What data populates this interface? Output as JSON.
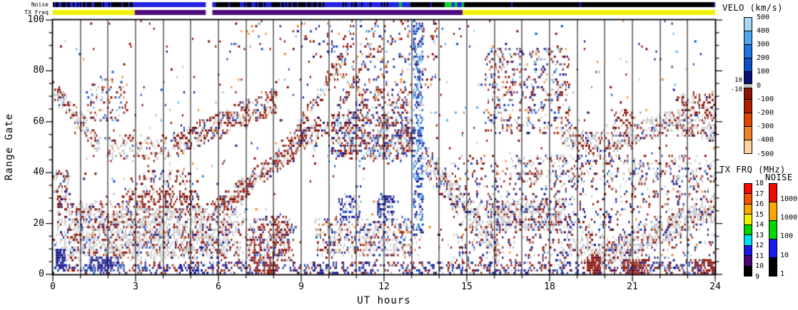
{
  "bars": {
    "noise_label": "Noise",
    "tx_label": "TX Freq",
    "noise_segments": [
      {
        "t0": 0,
        "t1": 2.95,
        "bg": "#000000",
        "fleck": {
          "color": "#2323e6",
          "density": 0.32
        }
      },
      {
        "t0": 2.95,
        "t1": 5.55,
        "bg": "#2323e6"
      },
      {
        "t0": 5.55,
        "t1": 5.78,
        "bg": "#ffffff"
      },
      {
        "t0": 5.78,
        "t1": 5.9,
        "bg": "#2323e6"
      },
      {
        "t0": 5.9,
        "t1": 9.85,
        "bg": "#000000",
        "fleck": {
          "color": "#2323e6",
          "density": 0.32
        }
      },
      {
        "t0": 9.85,
        "t1": 10.5,
        "bg": "#2323e6"
      },
      {
        "t0": 10.5,
        "t1": 12.55,
        "bg": "#2323e6",
        "fleck": {
          "color": "#000000",
          "density": 0.3
        }
      },
      {
        "t0": 12.55,
        "t1": 12.95,
        "bg": "#2323e6",
        "fleck": {
          "color": "#00c832",
          "density": 0.2
        }
      },
      {
        "t0": 12.95,
        "t1": 14.2,
        "bg": "#000000",
        "fleck": {
          "color": "#2323e6",
          "density": 0.1
        }
      },
      {
        "t0": 14.2,
        "t1": 14.45,
        "bg": "#00d824"
      },
      {
        "t0": 14.45,
        "t1": 14.9,
        "bg": "#2323e6",
        "fleck": {
          "color": "#00d824",
          "density": 0.3
        }
      },
      {
        "t0": 14.9,
        "t1": 24,
        "bg": "#000000",
        "fleck": {
          "color": "#2323e6",
          "density": 0.015
        }
      }
    ],
    "tx_segments": [
      {
        "t0": 0,
        "t1": 2.97,
        "bg": "#f0f000"
      },
      {
        "t0": 2.97,
        "t1": 5.55,
        "bg": "#4f0b7e"
      },
      {
        "t0": 5.55,
        "t1": 5.78,
        "bg": "#ffffff"
      },
      {
        "t0": 5.78,
        "t1": 14.85,
        "bg": "#4f0b7e"
      },
      {
        "t0": 14.85,
        "t1": 24,
        "bg": "#f0f000"
      }
    ]
  },
  "axes": {
    "x": {
      "label": "UT hours",
      "min": 0,
      "max": 24,
      "major_tick_values": [
        0,
        3,
        6,
        9,
        12,
        15,
        18,
        21,
        24
      ],
      "major_tick_labels": [
        "0",
        "3",
        "6",
        "9",
        "12",
        "15",
        "18",
        "21",
        "24"
      ],
      "minor_step": 1
    },
    "y": {
      "label": "Range Gate",
      "min": 0,
      "max": 100,
      "major_tick_values": [
        0,
        20,
        40,
        60,
        80,
        100
      ],
      "major_tick_labels": [
        "0",
        "20",
        "40",
        "60",
        "80",
        "100"
      ],
      "minor_step": 5
    }
  },
  "legends": {
    "velocity": {
      "title": "VELO (km/s)",
      "labels": [
        "500",
        "400",
        "300",
        "200",
        "100",
        "0",
        "-100",
        "-200",
        "-300",
        "-400",
        "-500"
      ],
      "colors": [
        "#a9d8f4",
        "#4fa7f0",
        "#2176e4",
        "#0f4fc8",
        "#0a1478",
        "#8e1505",
        "#b02103",
        "#dc4703",
        "#f0832a",
        "#fbd3a5"
      ],
      "gs_labels": [
        "10",
        "-10"
      ],
      "gs_color": "#c6c6c6"
    },
    "tx_freq": {
      "title": "TX FRQ (MHz)",
      "labels": [
        "18",
        "17",
        "16",
        "15",
        "14",
        "13",
        "12",
        "11",
        "10",
        "9"
      ],
      "colors": [
        "#f20c00",
        "#f55400",
        "#f9a800",
        "#f2f200",
        "#00d800",
        "#00e0f0",
        "#1818f0",
        "#4a0878",
        "#000000"
      ]
    },
    "noise": {
      "title": "NOISE",
      "labels": [
        "10000",
        "1000",
        "100",
        "10",
        "1"
      ],
      "colors": [
        "#f20c00",
        "#f9a800",
        "#00d800",
        "#1818f0",
        "#000000"
      ]
    }
  },
  "chart_data": {
    "type": "rti-scatter",
    "description": "SuperDARN radar range-time plot: Doppler velocity vs UT hour and range gate; grey = ground scatter, reds = negative velocity, blues = positive velocity",
    "x": {
      "label": "UT hours",
      "range": [
        0,
        24
      ],
      "hour_gridlines": true
    },
    "y": {
      "label": "Range Gate",
      "range": [
        0,
        100
      ]
    },
    "seed": 1337,
    "cell": {
      "t_step_hours": 0.052,
      "gate_step": 1
    },
    "palette": {
      "gs": "#c8c8c8",
      "dred": "#8c1408",
      "navy": "#16168c",
      "blue": "#1550c8",
      "lblue": "#2d7ce0",
      "cyan": "#58b2f0",
      "orange": "#f0832a",
      "peach": "#fbd3a5"
    },
    "features": [
      {
        "s": "blob",
        "t": [
          0.05,
          7.1
        ],
        "g": [
          5,
          28
        ],
        "d": 0.55,
        "f": 0.25,
        "w": {
          "gs": 62,
          "dred": 24,
          "navy": 8,
          "blue": 4,
          "orange": 2
        }
      },
      {
        "s": "blob",
        "t": [
          0.1,
          0.45
        ],
        "g": [
          2,
          9
        ],
        "d": 0.75,
        "w": {
          "navy": 85,
          "blue": 15
        }
      },
      {
        "s": "blob",
        "t": [
          1.25,
          2.4
        ],
        "g": [
          1,
          6
        ],
        "d": 0.6,
        "w": {
          "navy": 80,
          "blue": 10,
          "gs": 10
        }
      },
      {
        "s": "blob",
        "t": [
          2.4,
          5.4
        ],
        "g": [
          18,
          33
        ],
        "d": 0.5,
        "f": 0.3,
        "w": {
          "dred": 72,
          "gs": 20,
          "navy": 6,
          "blue": 2
        }
      },
      {
        "s": "diag",
        "t": [
          0.0,
          1.7
        ],
        "g0": 72,
        "g1": 50,
        "th": 9,
        "d": 0.5,
        "w": {
          "gs": 55,
          "dred": 33,
          "blue": 6,
          "orange": 3,
          "cyan": 3
        }
      },
      {
        "s": "blob",
        "t": [
          1.7,
          4.5
        ],
        "g": [
          44,
          54
        ],
        "d": 0.28,
        "f": 0.3,
        "w": {
          "gs": 60,
          "dred": 30,
          "blue": 5,
          "orange": 5
        }
      },
      {
        "s": "blob",
        "t": [
          1.2,
          2.7
        ],
        "g": [
          60,
          77
        ],
        "d": 0.16,
        "w": {
          "dred": 40,
          "gs": 25,
          "blue": 12,
          "orange": 10,
          "cyan": 8,
          "navy": 5
        }
      },
      {
        "s": "diag",
        "t": [
          4.3,
          8.1
        ],
        "g0": 50,
        "g1": 68,
        "th": 11,
        "d": 0.5,
        "w": {
          "dred": 55,
          "gs": 30,
          "blue": 6,
          "navy": 5,
          "orange": 4
        }
      },
      {
        "s": "diag",
        "t": [
          5.6,
          9.7
        ],
        "g0": 22,
        "g1": 58,
        "th": 9,
        "d": 0.55,
        "w": {
          "dred": 58,
          "gs": 30,
          "navy": 6,
          "blue": 4,
          "orange": 2
        }
      },
      {
        "s": "diag",
        "t": [
          8.0,
          10.7
        ],
        "g0": 42,
        "g1": 88,
        "th": 7,
        "d": 0.4,
        "w": {
          "dred": 58,
          "gs": 24,
          "blue": 8,
          "orange": 6,
          "cyan": 4
        }
      },
      {
        "s": "diag",
        "t": [
          9.4,
          11.5
        ],
        "g0": 48,
        "g1": 86,
        "th": 6,
        "d": 0.35,
        "w": {
          "dred": 55,
          "gs": 22,
          "navy": 10,
          "blue": 8,
          "orange": 5
        }
      },
      {
        "s": "blob",
        "t": [
          9.9,
          13.35
        ],
        "g": [
          44,
          64
        ],
        "d": 0.5,
        "f": 0.2,
        "w": {
          "dred": 42,
          "gs": 28,
          "navy": 16,
          "blue": 8,
          "cyan": 6
        }
      },
      {
        "s": "blob",
        "t": [
          10.9,
          13.35
        ],
        "g": [
          64,
          72
        ],
        "d": 0.3,
        "w": {
          "dred": 45,
          "navy": 20,
          "gs": 15,
          "blue": 10,
          "orange": 10
        }
      },
      {
        "s": "blob",
        "t": [
          9.9,
          13.9
        ],
        "g": [
          72,
          100
        ],
        "d": 0.12,
        "w": {
          "dred": 35,
          "navy": 22,
          "blue": 14,
          "orange": 12,
          "cyan": 9,
          "gs": 8
        }
      },
      {
        "s": "blob",
        "t": [
          6.3,
          9.9
        ],
        "g": [
          85,
          100
        ],
        "d": 0.05,
        "w": {
          "dred": 40,
          "navy": 20,
          "blue": 15,
          "orange": 15,
          "cyan": 10
        }
      },
      {
        "s": "blob",
        "t": [
          7.0,
          8.7
        ],
        "g": [
          4,
          22
        ],
        "d": 0.5,
        "f": 0.25,
        "w": {
          "dred": 55,
          "gs": 28,
          "navy": 12,
          "blue": 5
        }
      },
      {
        "s": "blob",
        "t": [
          9.4,
          13.35
        ],
        "g": [
          6,
          22
        ],
        "d": 0.42,
        "f": 0.25,
        "w": {
          "gs": 50,
          "dred": 20,
          "navy": 15,
          "blue": 10,
          "orange": 5
        }
      },
      {
        "s": "blob",
        "t": [
          10.3,
          11.15
        ],
        "g": [
          18,
          30
        ],
        "d": 0.3,
        "w": {
          "navy": 55,
          "blue": 25,
          "gs": 15,
          "cyan": 5
        }
      },
      {
        "s": "blob",
        "t": [
          11.7,
          12.35
        ],
        "g": [
          20,
          30
        ],
        "d": 0.55,
        "w": {
          "navy": 70,
          "blue": 20,
          "gs": 10
        }
      },
      {
        "s": "blob",
        "t": [
          13.0,
          13.4
        ],
        "g": [
          15,
          100
        ],
        "d": 0.45,
        "w": {
          "blue": 30,
          "navy": 28,
          "cyan": 16,
          "lblue": 16,
          "gs": 10
        }
      },
      {
        "s": "diag",
        "t": [
          13.35,
          16.2
        ],
        "g0": 46,
        "g1": 8,
        "th": 13,
        "d": 0.5,
        "w": {
          "gs": 52,
          "dred": 20,
          "navy": 16,
          "blue": 8,
          "orange": 4
        }
      },
      {
        "s": "blob",
        "t": [
          15.6,
          18.7
        ],
        "g": [
          55,
          88
        ],
        "d": 0.22,
        "w": {
          "dred": 34,
          "navy": 20,
          "gs": 20,
          "blue": 10,
          "orange": 8,
          "cyan": 8
        }
      },
      {
        "s": "blob",
        "t": [
          16.2,
          18.1
        ],
        "g": [
          58,
          78
        ],
        "d": 0.2,
        "w": {
          "dred": 40,
          "navy": 22,
          "gs": 18,
          "blue": 10,
          "orange": 10
        }
      },
      {
        "s": "wave",
        "t": [
          18.4,
          24.0
        ],
        "gc": 55,
        "amp": -4,
        "per": 5.5,
        "th": 9,
        "d": 0.5,
        "w": {
          "gs": 62,
          "dred": 28,
          "navy": 6,
          "blue": 4
        }
      },
      {
        "s": "blob",
        "t": [
          20.2,
          21.1
        ],
        "g": [
          50,
          64
        ],
        "d": 0.35,
        "w": {
          "dred": 70,
          "gs": 25,
          "navy": 5
        }
      },
      {
        "s": "blob",
        "t": [
          22.6,
          24.0
        ],
        "g": [
          54,
          70
        ],
        "d": 0.35,
        "w": {
          "dred": 60,
          "gs": 28,
          "navy": 6,
          "blue": 6
        }
      },
      {
        "s": "blob",
        "t": [
          15.4,
          18.7
        ],
        "g": [
          16,
          30
        ],
        "d": 0.5,
        "f": 0.25,
        "w": {
          "gs": 52,
          "dred": 26,
          "navy": 16,
          "blue": 6
        }
      },
      {
        "s": "diag",
        "t": [
          19.3,
          24.0
        ],
        "g0": 4,
        "g1": 26,
        "th": 11,
        "d": 0.6,
        "w": {
          "gs": 66,
          "dred": 22,
          "navy": 10,
          "blue": 2
        }
      },
      {
        "s": "blob",
        "t": [
          16.5,
          24.0
        ],
        "g": [
          36,
          46
        ],
        "d": 0.22,
        "w": {
          "gs": 48,
          "dred": 30,
          "navy": 12,
          "blue": 10
        }
      },
      {
        "s": "blob",
        "t": [
          14.4,
          24.0
        ],
        "g": [
          0,
          46
        ],
        "d": 0.13,
        "w": {
          "dred": 38,
          "navy": 28,
          "gs": 20,
          "blue": 10,
          "orange": 4
        }
      },
      {
        "s": "blob",
        "t": [
          18.4,
          19.6
        ],
        "g": [
          6,
          20
        ],
        "d": 0.3,
        "w": {
          "gs": 55,
          "dred": 25,
          "navy": 20
        }
      },
      {
        "s": "blob",
        "t": [
          0,
          24
        ],
        "g": [
          0,
          4
        ],
        "d": 0.32,
        "w": {
          "navy": 48,
          "dred": 30,
          "blue": 14,
          "gs": 8
        }
      },
      {
        "s": "blob",
        "t": [
          19.3,
          19.85
        ],
        "g": [
          0,
          6
        ],
        "d": 0.85,
        "w": {
          "dred": 90,
          "navy": 10
        }
      },
      {
        "s": "blob",
        "t": [
          20.6,
          21.6
        ],
        "g": [
          0,
          5
        ],
        "d": 0.7,
        "w": {
          "dred": 85,
          "navy": 15
        }
      },
      {
        "s": "blob",
        "t": [
          23.2,
          24.0
        ],
        "g": [
          0,
          5
        ],
        "d": 0.65,
        "w": {
          "dred": 85,
          "navy": 15
        }
      },
      {
        "s": "blob",
        "t": [
          7.25,
          8.15
        ],
        "g": [
          0,
          4
        ],
        "d": 0.65,
        "w": {
          "dred": 80,
          "navy": 20
        }
      },
      {
        "s": "blob",
        "t": [
          4.55,
          5.25
        ],
        "g": [
          0,
          3
        ],
        "d": 0.6,
        "w": {
          "navy": 85,
          "dred": 15
        }
      },
      {
        "s": "blob",
        "t": [
          3.0,
          5.2
        ],
        "g": [
          30,
          40
        ],
        "d": 0.18,
        "w": {
          "dred": 60,
          "gs": 25,
          "navy": 10,
          "blue": 5
        }
      },
      {
        "s": "blob",
        "t": [
          0,
          0.6
        ],
        "g": [
          26,
          40
        ],
        "d": 0.3,
        "w": {
          "dred": 45,
          "gs": 35,
          "navy": 15,
          "blue": 5
        }
      },
      {
        "s": "blob",
        "t": [
          0,
          24
        ],
        "g": [
          0,
          100
        ],
        "d": 0.013,
        "w": {
          "dred": 38,
          "blue": 14,
          "navy": 14,
          "gs": 16,
          "orange": 9,
          "cyan": 9
        }
      }
    ]
  }
}
